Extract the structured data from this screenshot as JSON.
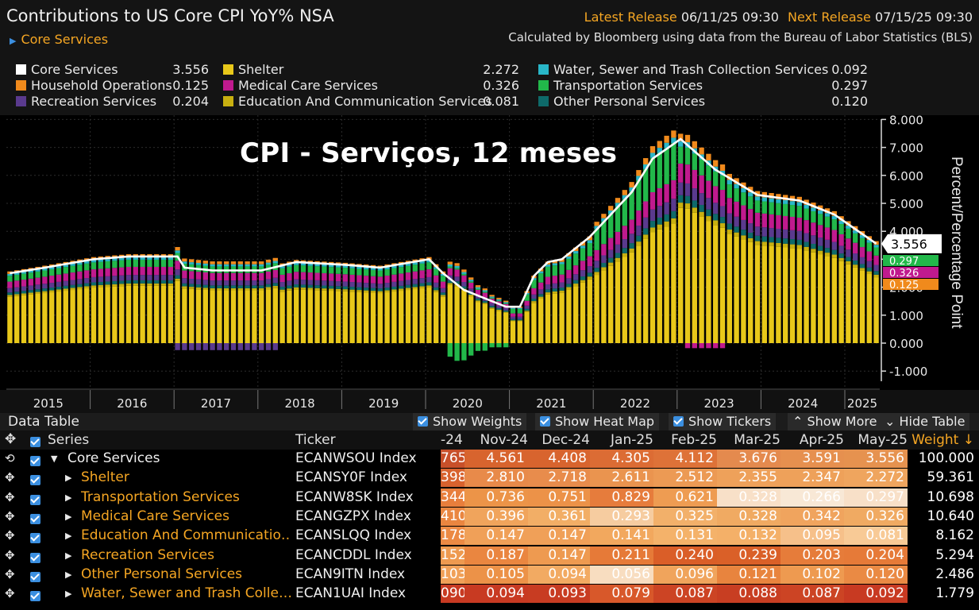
{
  "header": {
    "title": "Contributions to US Core CPI YoY% NSA",
    "subtitle": "Core Services",
    "latest_release_label": "Latest Release",
    "latest_release_value": "06/11/25 09:30",
    "next_release_label": "Next Release",
    "next_release_value": "07/15/25 09:30",
    "calc_note": "Calculated by Bloomberg using data from the Bureau of Labor Statistics (BLS)"
  },
  "legend": [
    {
      "label": "Core Services",
      "value": "3.556",
      "color": "#ffffff"
    },
    {
      "label": "Shelter",
      "value": "2.272",
      "color": "#e8c81a"
    },
    {
      "label": "Water, Sewer and Trash Collection Services",
      "value": "0.092",
      "color": "#29b6c8"
    },
    {
      "label": "Household Operations",
      "value": "0.125",
      "color": "#f08a1c"
    },
    {
      "label": "Medical Care Services",
      "value": "0.326",
      "color": "#c01a8e"
    },
    {
      "label": "Transportation Services",
      "value": "0.297",
      "color": "#22b84a"
    },
    {
      "label": "Recreation Services",
      "value": "0.204",
      "color": "#5a3a8e"
    },
    {
      "label": "Education And Communication Services",
      "value": "0.081",
      "color": "#c8b010"
    },
    {
      "label": "Other Personal Services",
      "value": "0.120",
      "color": "#0e6a6a"
    }
  ],
  "overlay_title": "CPI - Serviços, 12 meses",
  "chart_data": {
    "type": "bar",
    "stacked": true,
    "x_start": "2015-01",
    "x_end": "2025-05",
    "xticks": [
      "2015",
      "2016",
      "2017",
      "2018",
      "2019",
      "2020",
      "2021",
      "2022",
      "2023",
      "2024",
      "2025"
    ],
    "ylim": [
      -1.0,
      8.0
    ],
    "yticks": [
      "-1.000",
      "0.000",
      "1.000",
      "2.000",
      "3.000",
      "4.000",
      "5.000",
      "6.000",
      "7.000",
      "8.000"
    ],
    "ylabel": "Percent/Percentage Point",
    "last_value_label": "3.556",
    "line_series": "Core Services",
    "core_services_anchors": [
      [
        "2015-01",
        2.5
      ],
      [
        "2015-06",
        2.7
      ],
      [
        "2016-01",
        3.0
      ],
      [
        "2016-06",
        3.1
      ],
      [
        "2017-01",
        3.1
      ],
      [
        "2017-02",
        2.7
      ],
      [
        "2017-06",
        2.6
      ],
      [
        "2018-01",
        2.6
      ],
      [
        "2018-06",
        2.9
      ],
      [
        "2019-01",
        2.8
      ],
      [
        "2019-06",
        2.7
      ],
      [
        "2020-01",
        3.0
      ],
      [
        "2020-03",
        2.5
      ],
      [
        "2020-06",
        1.9
      ],
      [
        "2020-12",
        1.3
      ],
      [
        "2021-02",
        1.3
      ],
      [
        "2021-04",
        2.4
      ],
      [
        "2021-06",
        2.9
      ],
      [
        "2021-08",
        3.0
      ],
      [
        "2021-12",
        3.8
      ],
      [
        "2022-06",
        5.4
      ],
      [
        "2022-09",
        6.6
      ],
      [
        "2023-01",
        7.3
      ],
      [
        "2023-06",
        6.2
      ],
      [
        "2023-12",
        5.3
      ],
      [
        "2024-06",
        5.1
      ],
      [
        "2024-11",
        4.6
      ],
      [
        "2025-05",
        3.556
      ]
    ],
    "component_share": {
      "Shelter": 0.64,
      "Transportation Services": 0.08,
      "Medical Care Services": 0.09,
      "Recreation Services": 0.06,
      "Other Personal Services": 0.035,
      "Education And Communication Services": 0.025,
      "Water, Sewer and Trash Collection Services": 0.026,
      "Household Operations": 0.035
    },
    "right_axis_stack_labels": [
      "0.297",
      "0.326",
      "0.125"
    ]
  },
  "table": {
    "title": "Data Table",
    "buttons": [
      "Show Weights",
      "Show Heat Map",
      "Show Tickers",
      "Show More",
      "Hide Table"
    ],
    "columns": {
      "series": "Series",
      "ticker": "Ticker",
      "months": [
        "-24",
        "Nov-24",
        "Dec-24",
        "Jan-25",
        "Feb-25",
        "Mar-25",
        "Apr-25",
        "May-25"
      ],
      "weight": "Weight ↓"
    },
    "rows": [
      {
        "name": "Core Services",
        "ticker": "ECANWSOU Index",
        "values": [
          "765",
          "4.561",
          "4.408",
          "4.305",
          "4.112",
          "3.676",
          "3.591",
          "3.556"
        ],
        "weight": "100.000",
        "top": true
      },
      {
        "name": "Shelter",
        "ticker": "ECANSY0F Index",
        "values": [
          "398",
          "2.810",
          "2.718",
          "2.611",
          "2.512",
          "2.355",
          "2.347",
          "2.272"
        ],
        "weight": "59.361"
      },
      {
        "name": "Transportation Services",
        "ticker": "ECANW8SK Index",
        "values": [
          "344",
          "0.736",
          "0.751",
          "0.829",
          "0.621",
          "0.328",
          "0.266",
          "0.297"
        ],
        "weight": "10.698"
      },
      {
        "name": "Medical Care Services",
        "ticker": "ECANGZPX Index",
        "values": [
          "410",
          "0.396",
          "0.361",
          "0.293",
          "0.325",
          "0.328",
          "0.342",
          "0.326"
        ],
        "weight": "10.640"
      },
      {
        "name": "Education And Communicatio…",
        "ticker": "ECANSLQQ Index",
        "values": [
          "178",
          "0.147",
          "0.147",
          "0.141",
          "0.131",
          "0.132",
          "0.095",
          "0.081"
        ],
        "weight": "8.162"
      },
      {
        "name": "Recreation Services",
        "ticker": "ECANCDDL Index",
        "values": [
          "152",
          "0.187",
          "0.147",
          "0.211",
          "0.240",
          "0.239",
          "0.203",
          "0.204"
        ],
        "weight": "5.294"
      },
      {
        "name": "Other Personal Services",
        "ticker": "ECAN9ITN Index",
        "values": [
          "103",
          "0.105",
          "0.094",
          "0.056",
          "0.096",
          "0.121",
          "0.102",
          "0.120"
        ],
        "weight": "2.486"
      },
      {
        "name": "Water, Sewer and Trash Colle…",
        "ticker": "ECAN1UAI Index",
        "values": [
          "090",
          "0.094",
          "0.093",
          "0.079",
          "0.087",
          "0.088",
          "0.087",
          "0.092"
        ],
        "weight": "1.779"
      }
    ],
    "heat_colors": [
      [
        "#c8502a",
        "#d8642e",
        "#d8642e",
        "#dc6c34",
        "#de7238",
        "#e48a4e",
        "#e6904f",
        "#e6924f"
      ],
      [
        "#d8622e",
        "#e88a4a",
        "#e88c4c",
        "#ea944f",
        "#ec9a54",
        "#eea15a",
        "#eea15a",
        "#efa55e"
      ],
      [
        "#e87e3c",
        "#ec9448",
        "#ec9248",
        "#e67c3c",
        "#ee9c52",
        "#f8e0c8",
        "#f8e8d6",
        "#f8e0c8"
      ],
      [
        "#ea8640",
        "#f0a45c",
        "#f2ae66",
        "#f6cca0",
        "#f2b06a",
        "#f0aa62",
        "#f0a45e",
        "#f0aa62"
      ],
      [
        "#ec8a44",
        "#f0a058",
        "#f0a058",
        "#f2a85e",
        "#f4b26a",
        "#f4b068",
        "#f6c08a",
        "#f8ca96"
      ],
      [
        "#ee9a50",
        "#ea8640",
        "#ee9a50",
        "#e67a38",
        "#da5e28",
        "#da6028",
        "#e67c3a",
        "#e67a38"
      ],
      [
        "#f0a058",
        "#ec9248",
        "#f2aa62",
        "#f8ddc0",
        "#f0a45c",
        "#e8843e",
        "#ee9a50",
        "#ea8a44"
      ],
      [
        "#c83a22",
        "#c83a22",
        "#c83c22",
        "#d8582a",
        "#cc4424",
        "#c83e22",
        "#cc4424",
        "#c83a22"
      ]
    ]
  }
}
